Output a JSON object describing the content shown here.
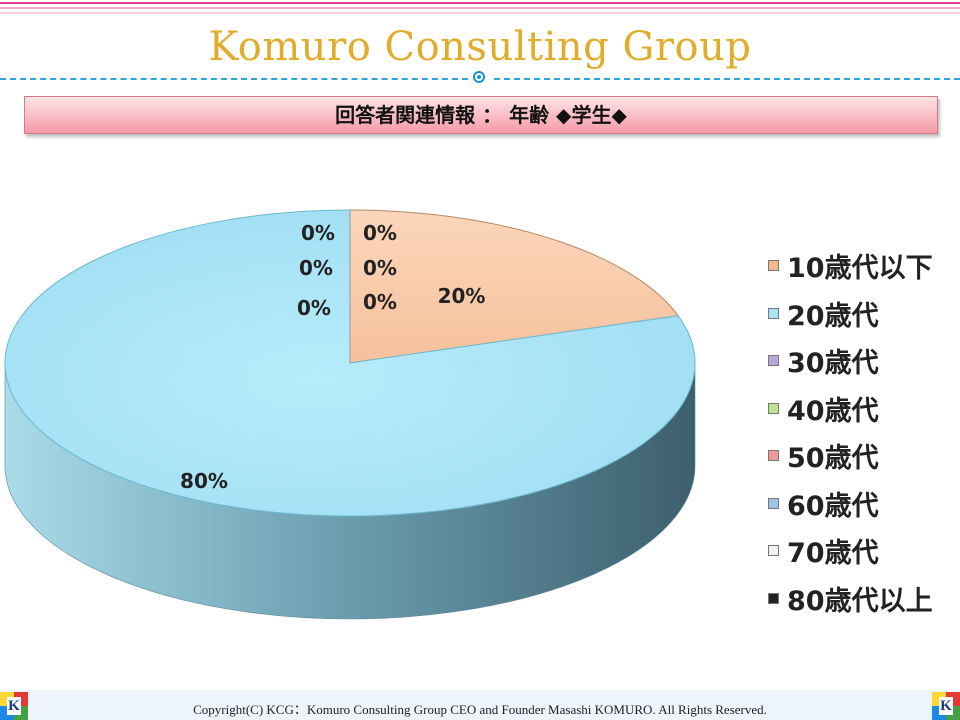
{
  "slide": {
    "title": "Komuro Consulting Group",
    "subtitle": "回答者関連情報 ： 年齢 ◆学生◆",
    "copyright": "Copyright(C) KCG：Komuro Consulting Group CEO and Founder Masashi KOMURO. All Rights Reserved.",
    "logo_letter": "K",
    "colors": {
      "title": "#e0ac2a",
      "band_top": "#fde3e7",
      "band_bottom": "#f59aa7",
      "dash": "#2fa4d8",
      "stripe": "#e63b8c"
    }
  },
  "chart_data": {
    "type": "pie",
    "style": "3d",
    "categories": [
      "10歳代以下",
      "20歳代",
      "30歳代",
      "40歳代",
      "50歳代",
      "60歳代",
      "70歳代",
      "80歳代以上"
    ],
    "values": [
      20,
      80,
      0,
      0,
      0,
      0,
      0,
      0
    ],
    "data_labels": [
      "20%",
      "80%",
      "0%",
      "0%",
      "0%",
      "0%",
      "0%",
      "0%"
    ],
    "colors": [
      "#f7b98a",
      "#a8e4f7",
      "#b9a6dd",
      "#bde38d",
      "#f29a9a",
      "#9ec3ea",
      "#f2f2f2",
      "#222222"
    ],
    "legend_position": "right"
  }
}
